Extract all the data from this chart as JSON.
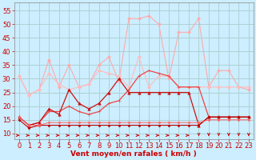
{
  "xlabel": "Vent moyen/en rafales ( km/h )",
  "bg_color": "#cceeff",
  "grid_color": "#aacccc",
  "x": [
    0,
    1,
    2,
    3,
    4,
    5,
    6,
    7,
    8,
    9,
    10,
    11,
    12,
    13,
    14,
    15,
    16,
    17,
    18,
    19,
    20,
    21,
    22,
    23
  ],
  "series": [
    {
      "color": "#ffaaaa",
      "marker": "D",
      "markersize": 2.0,
      "linewidth": 0.8,
      "values": [
        31,
        24,
        26,
        37,
        27,
        35,
        27,
        28,
        35,
        38,
        29,
        52,
        52,
        53,
        50,
        30,
        47,
        47,
        52,
        27,
        33,
        33,
        27,
        26
      ]
    },
    {
      "color": "#ffbbbb",
      "marker": "D",
      "markersize": 2.0,
      "linewidth": 0.8,
      "values": [
        31,
        24,
        26,
        32,
        28,
        26,
        27,
        28,
        33,
        32,
        31,
        27,
        38,
        27,
        31,
        31,
        27,
        27,
        27,
        27,
        27,
        27,
        27,
        27
      ]
    },
    {
      "color": "#ee4444",
      "marker": "+",
      "markersize": 3.5,
      "linewidth": 0.9,
      "values": [
        16,
        13,
        14,
        18,
        18,
        20,
        18,
        17,
        18,
        21,
        22,
        26,
        31,
        33,
        32,
        31,
        27,
        27,
        27,
        16,
        16,
        16,
        16,
        16
      ]
    },
    {
      "color": "#cc1111",
      "marker": "^",
      "markersize": 2.5,
      "linewidth": 0.9,
      "values": [
        16,
        13,
        14,
        19,
        17,
        26,
        21,
        19,
        21,
        25,
        30,
        25,
        25,
        25,
        25,
        25,
        25,
        25,
        13,
        16,
        16,
        16,
        16,
        16
      ]
    },
    {
      "color": "#bb0000",
      "marker": "D",
      "markersize": 1.5,
      "linewidth": 0.8,
      "values": [
        15,
        12,
        13,
        13,
        13,
        13,
        13,
        13,
        13,
        13,
        13,
        13,
        13,
        13,
        13,
        13,
        13,
        13,
        13,
        16,
        16,
        16,
        16,
        16
      ]
    },
    {
      "color": "#ff6666",
      "marker": "D",
      "markersize": 1.5,
      "linewidth": 0.7,
      "values": [
        16,
        13,
        13,
        14,
        14,
        14,
        14,
        14,
        14,
        14,
        14,
        14,
        14,
        14,
        14,
        14,
        14,
        14,
        14,
        15,
        15,
        15,
        15,
        15
      ]
    }
  ],
  "wind_dirs": [
    0,
    0,
    0,
    0,
    0,
    0,
    0,
    0,
    0,
    0,
    0,
    0,
    0,
    0,
    0,
    0,
    0,
    0,
    1,
    1,
    1,
    1,
    1,
    1
  ],
  "ylim": [
    8,
    58
  ],
  "yticks": [
    10,
    15,
    20,
    25,
    30,
    35,
    40,
    45,
    50,
    55
  ],
  "xlim": [
    -0.5,
    23.5
  ],
  "label_color": "#cc0000",
  "label_fontsize": 6.5,
  "tick_fontsize": 6.0
}
